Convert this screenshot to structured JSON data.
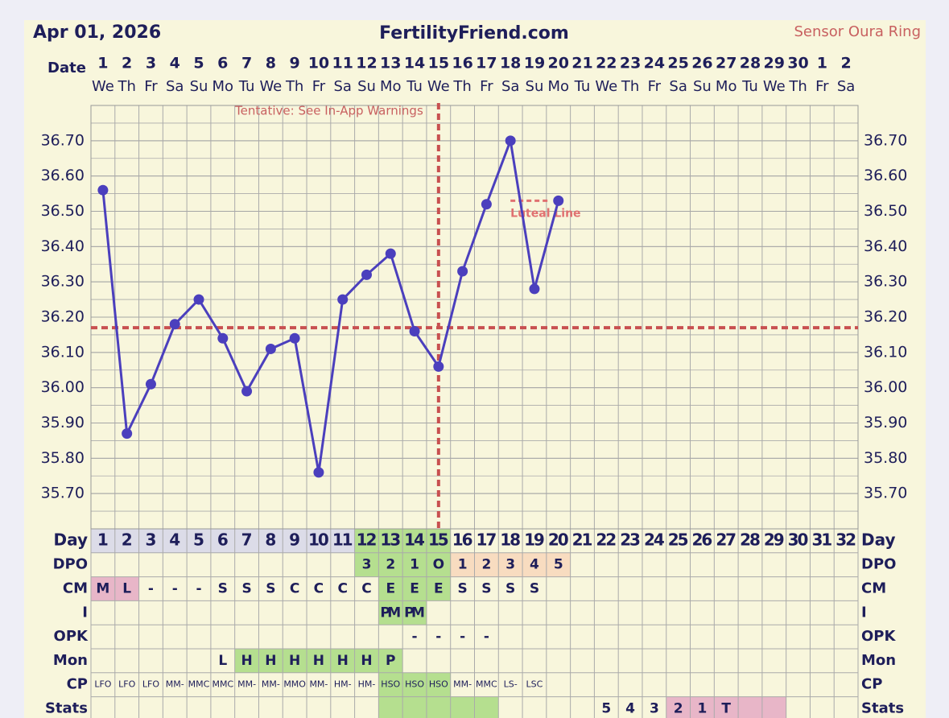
{
  "header": {
    "date": "Apr 01, 2026",
    "site": "FertilityFriend.com",
    "sensor": "Sensor Oura Ring"
  },
  "chart_data": {
    "type": "line",
    "date_label": "Date",
    "categories": [
      "1",
      "2",
      "3",
      "4",
      "5",
      "6",
      "7",
      "8",
      "9",
      "10",
      "11",
      "12",
      "13",
      "14",
      "15",
      "16",
      "17",
      "18",
      "19",
      "20",
      "21",
      "22",
      "23",
      "24",
      "25",
      "26",
      "27",
      "28",
      "29",
      "30",
      "1",
      "2"
    ],
    "weekdays": [
      "We",
      "Th",
      "Fr",
      "Sa",
      "Su",
      "Mo",
      "Tu",
      "We",
      "Th",
      "Fr",
      "Sa",
      "Su",
      "Mo",
      "Tu",
      "We",
      "Th",
      "Fr",
      "Sa",
      "Su",
      "Mo",
      "Tu",
      "We",
      "Th",
      "Fr",
      "Sa",
      "Su",
      "Mo",
      "Tu",
      "We",
      "Th",
      "Fr",
      "Sa"
    ],
    "series": [
      {
        "name": "Temperature",
        "color": "#4b3fbd",
        "values": [
          36.56,
          35.87,
          36.01,
          36.18,
          36.25,
          36.14,
          35.99,
          36.11,
          36.14,
          35.76,
          36.25,
          36.32,
          36.38,
          36.16,
          36.06,
          36.33,
          36.52,
          36.7,
          36.28,
          36.53,
          null,
          null,
          null,
          null,
          null,
          null,
          null,
          null,
          null,
          null,
          null,
          null
        ]
      }
    ],
    "ylim": [
      35.6,
      36.8
    ],
    "yticks": [
      {
        "value": 35.7,
        "label": "35.70"
      },
      {
        "value": 35.8,
        "label": "35.80"
      },
      {
        "value": 35.9,
        "label": "35.90"
      },
      {
        "value": 36.0,
        "label": "36.00"
      },
      {
        "value": 36.1,
        "label": "36.10"
      },
      {
        "value": 36.2,
        "label": "36.20"
      },
      {
        "value": 36.3,
        "label": "36.30"
      },
      {
        "value": 36.4,
        "label": "36.40"
      },
      {
        "value": 36.5,
        "label": "36.50"
      },
      {
        "value": 36.6,
        "label": "36.60"
      },
      {
        "value": 36.7,
        "label": "36.70"
      }
    ],
    "grid": true,
    "coverline": 36.17,
    "ovulation_day": 15,
    "annotation": "Tentative: See In-App Warnings",
    "luteal_line": {
      "label": "Luteal Line",
      "value": 36.53,
      "days": [
        18,
        20
      ]
    }
  },
  "table": {
    "rows": [
      {
        "label": "Day",
        "cells": [
          1,
          2,
          3,
          4,
          5,
          6,
          7,
          8,
          9,
          10,
          11,
          12,
          13,
          14,
          15,
          16,
          17,
          18,
          19,
          20,
          21,
          22,
          23,
          24,
          25,
          26,
          27,
          28,
          29,
          30,
          31,
          32
        ],
        "fills": [
          "#dcdce8",
          "#dcdce8",
          "#dcdce8",
          "#dcdce8",
          "#dcdce8",
          "#dcdce8",
          "#dcdce8",
          "#dcdce8",
          "#dcdce8",
          "#dcdce8",
          "#dcdce8",
          "#b5df8f",
          "#b5df8f",
          "#b5df8f",
          "#b5df8f",
          null,
          null,
          null,
          null,
          null,
          null,
          null,
          null,
          null,
          null,
          null,
          null,
          null,
          null,
          null,
          null,
          null
        ]
      },
      {
        "label": "DPO",
        "cells": [
          null,
          null,
          null,
          null,
          null,
          null,
          null,
          null,
          null,
          null,
          null,
          "3",
          "2",
          "1",
          "O",
          "1",
          "2",
          "3",
          "4",
          "5",
          null,
          null,
          null,
          null,
          null,
          null,
          null,
          null,
          null,
          null,
          null,
          null
        ],
        "fills": [
          null,
          null,
          null,
          null,
          null,
          null,
          null,
          null,
          null,
          null,
          null,
          "#b5df8f",
          "#b5df8f",
          "#b5df8f",
          "#b5df8f",
          "#f8dcc0",
          "#f8dcc0",
          "#f8dcc0",
          "#f8dcc0",
          "#f8dcc0",
          null,
          null,
          null,
          null,
          null,
          null,
          null,
          null,
          null,
          null,
          null,
          null
        ]
      },
      {
        "label": "CM",
        "cells": [
          "M",
          "L",
          "-",
          "-",
          "-",
          "S",
          "S",
          "S",
          "C",
          "C",
          "C",
          "C",
          "E",
          "E",
          "E",
          "S",
          "S",
          "S",
          "S",
          null,
          null,
          null,
          null,
          null,
          null,
          null,
          null,
          null,
          null,
          null,
          null,
          null
        ],
        "fills": [
          "#e8b6c8",
          "#e8b6c8",
          null,
          null,
          null,
          null,
          null,
          null,
          null,
          null,
          null,
          null,
          "#b5df8f",
          "#b5df8f",
          "#b5df8f",
          null,
          null,
          null,
          null,
          null,
          null,
          null,
          null,
          null,
          null,
          null,
          null,
          null,
          null,
          null,
          null,
          null
        ]
      },
      {
        "label": "I",
        "cells": [
          null,
          null,
          null,
          null,
          null,
          null,
          null,
          null,
          null,
          null,
          null,
          null,
          "PM",
          "PM",
          null,
          null,
          null,
          null,
          null,
          null,
          null,
          null,
          null,
          null,
          null,
          null,
          null,
          null,
          null,
          null,
          null,
          null
        ],
        "fills": [
          null,
          null,
          null,
          null,
          null,
          null,
          null,
          null,
          null,
          null,
          null,
          null,
          "#b5df8f",
          "#b5df8f",
          null,
          null,
          null,
          null,
          null,
          null,
          null,
          null,
          null,
          null,
          null,
          null,
          null,
          null,
          null,
          null,
          null,
          null
        ]
      },
      {
        "label": "OPK",
        "cells": [
          null,
          null,
          null,
          null,
          null,
          null,
          null,
          null,
          null,
          null,
          null,
          null,
          null,
          "-",
          "-",
          "-",
          "-",
          null,
          null,
          null,
          null,
          null,
          null,
          null,
          null,
          null,
          null,
          null,
          null,
          null,
          null,
          null
        ],
        "fills": []
      },
      {
        "label": "Mon",
        "cells": [
          null,
          null,
          null,
          null,
          null,
          "L",
          "H",
          "H",
          "H",
          "H",
          "H",
          "H",
          "P",
          null,
          null,
          null,
          null,
          null,
          null,
          null,
          null,
          null,
          null,
          null,
          null,
          null,
          null,
          null,
          null,
          null,
          null,
          null
        ],
        "fills": [
          null,
          null,
          null,
          null,
          null,
          null,
          "#b5df8f",
          "#b5df8f",
          "#b5df8f",
          "#b5df8f",
          "#b5df8f",
          "#b5df8f",
          "#b5df8f"
        ]
      },
      {
        "label": "CP",
        "cells": [
          "LFO",
          "LFO",
          "LFO",
          "MM-",
          "MMC",
          "MMC",
          "MM-",
          "MM-",
          "MMO",
          "MM-",
          "HM-",
          "HM-",
          "HSO",
          "HSO",
          "HSO",
          "MM-",
          "MMC",
          "LS-",
          "LSC",
          null,
          null,
          null,
          null,
          null,
          null,
          null,
          null,
          null,
          null,
          null,
          null,
          null
        ],
        "fills": [
          null,
          null,
          null,
          null,
          null,
          null,
          null,
          null,
          null,
          null,
          null,
          null,
          "#b5df8f",
          "#b5df8f",
          "#b5df8f"
        ]
      },
      {
        "label": "Stats",
        "cells": [
          null,
          null,
          null,
          null,
          null,
          null,
          null,
          null,
          null,
          null,
          null,
          null,
          null,
          null,
          null,
          null,
          null,
          null,
          null,
          null,
          null,
          "5",
          "4",
          "3",
          "2",
          "1",
          "T",
          null,
          null,
          null,
          null,
          null
        ],
        "fills": [
          null,
          null,
          null,
          null,
          null,
          null,
          null,
          null,
          null,
          null,
          null,
          null,
          "#b5df8f",
          "#b5df8f",
          "#b5df8f",
          "#b5df8f",
          "#b5df8f",
          null,
          null,
          null,
          null,
          null,
          null,
          null,
          "#e8b6c8",
          "#e8b6c8",
          "#e8b6c8",
          "#e8b6c8",
          "#e8b6c8"
        ]
      }
    ]
  }
}
